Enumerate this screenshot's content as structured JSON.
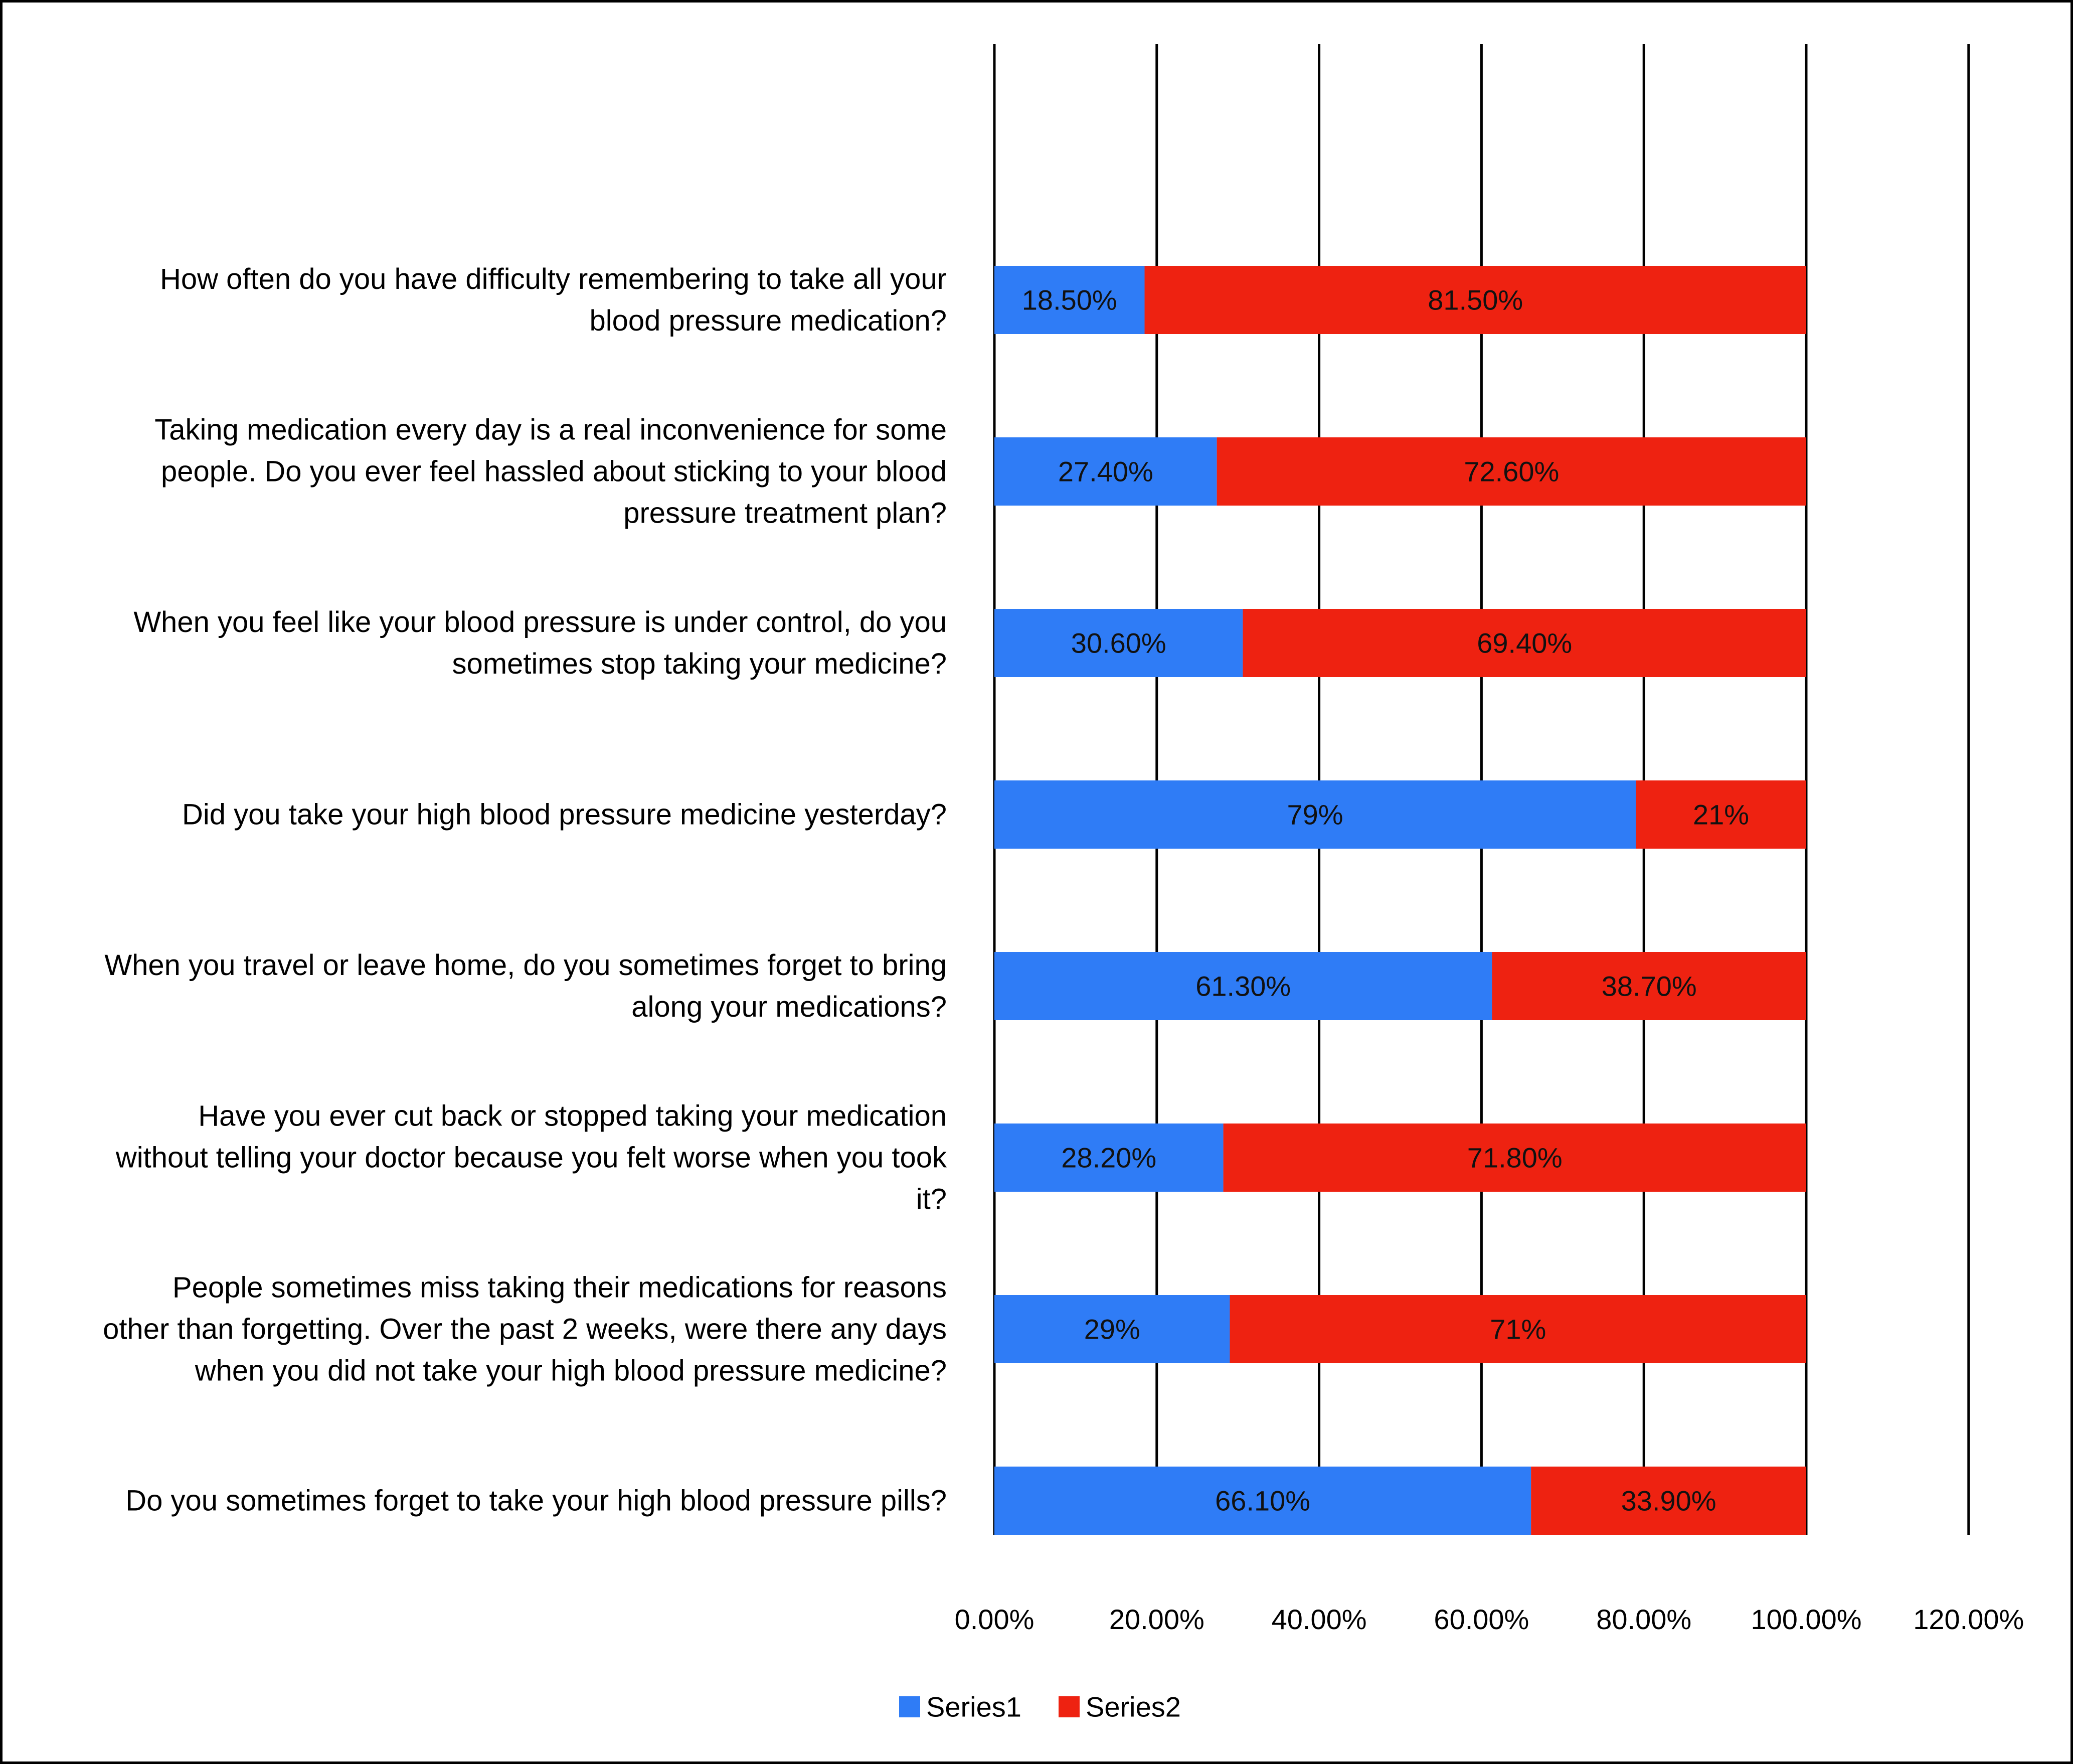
{
  "chart_data": {
    "type": "bar",
    "orientation": "horizontal",
    "stacked": true,
    "categories": [
      [
        "How often do you have difficulty remembering to take all your",
        "blood pressure medication?"
      ],
      [
        "Taking medication every day is a real inconvenience for some",
        "people. Do you ever feel hassled about sticking to your blood",
        "pressure treatment plan?"
      ],
      [
        "When you feel like your blood pressure is under control, do you",
        "sometimes stop taking your medicine?"
      ],
      [
        "Did you take your high blood pressure medicine yesterday?"
      ],
      [
        "When you travel or leave home, do you sometimes forget to bring",
        "along your medications?"
      ],
      [
        "Have you ever cut back or stopped taking your medication",
        "without telling your doctor because you felt worse when you took",
        "it?"
      ],
      [
        "People sometimes miss taking their medications for reasons",
        "other than forgetting. Over the past 2 weeks, were there any days",
        "when you did not take your high blood pressure medicine?"
      ],
      [
        "Do you sometimes forget to take your high blood pressure pills?"
      ]
    ],
    "series": [
      {
        "name": "Series1",
        "color": "#2f7cf6",
        "values": [
          18.5,
          27.4,
          30.6,
          79,
          61.3,
          28.2,
          29,
          66.1
        ],
        "labels": [
          "18.50%",
          "27.40%",
          "30.60%",
          "79%",
          "61.30%",
          "28.20%",
          "29%",
          "66.10%"
        ]
      },
      {
        "name": "Series2",
        "color": "#ee2211",
        "values": [
          81.5,
          72.6,
          69.4,
          21,
          38.7,
          71.8,
          71,
          33.9
        ],
        "labels": [
          "81.50%",
          "72.60%",
          "69.40%",
          "21%",
          "38.70%",
          "71.80%",
          "71%",
          "33.90%"
        ]
      }
    ],
    "xlim": [
      0,
      120
    ],
    "xticks": [
      0,
      20,
      40,
      60,
      80,
      100,
      120
    ],
    "xtick_labels": [
      "0.00%",
      "20.00%",
      "40.00%",
      "60.00%",
      "80.00%",
      "100.00%",
      "120.00%"
    ],
    "grid": true,
    "legend": "bottom"
  }
}
